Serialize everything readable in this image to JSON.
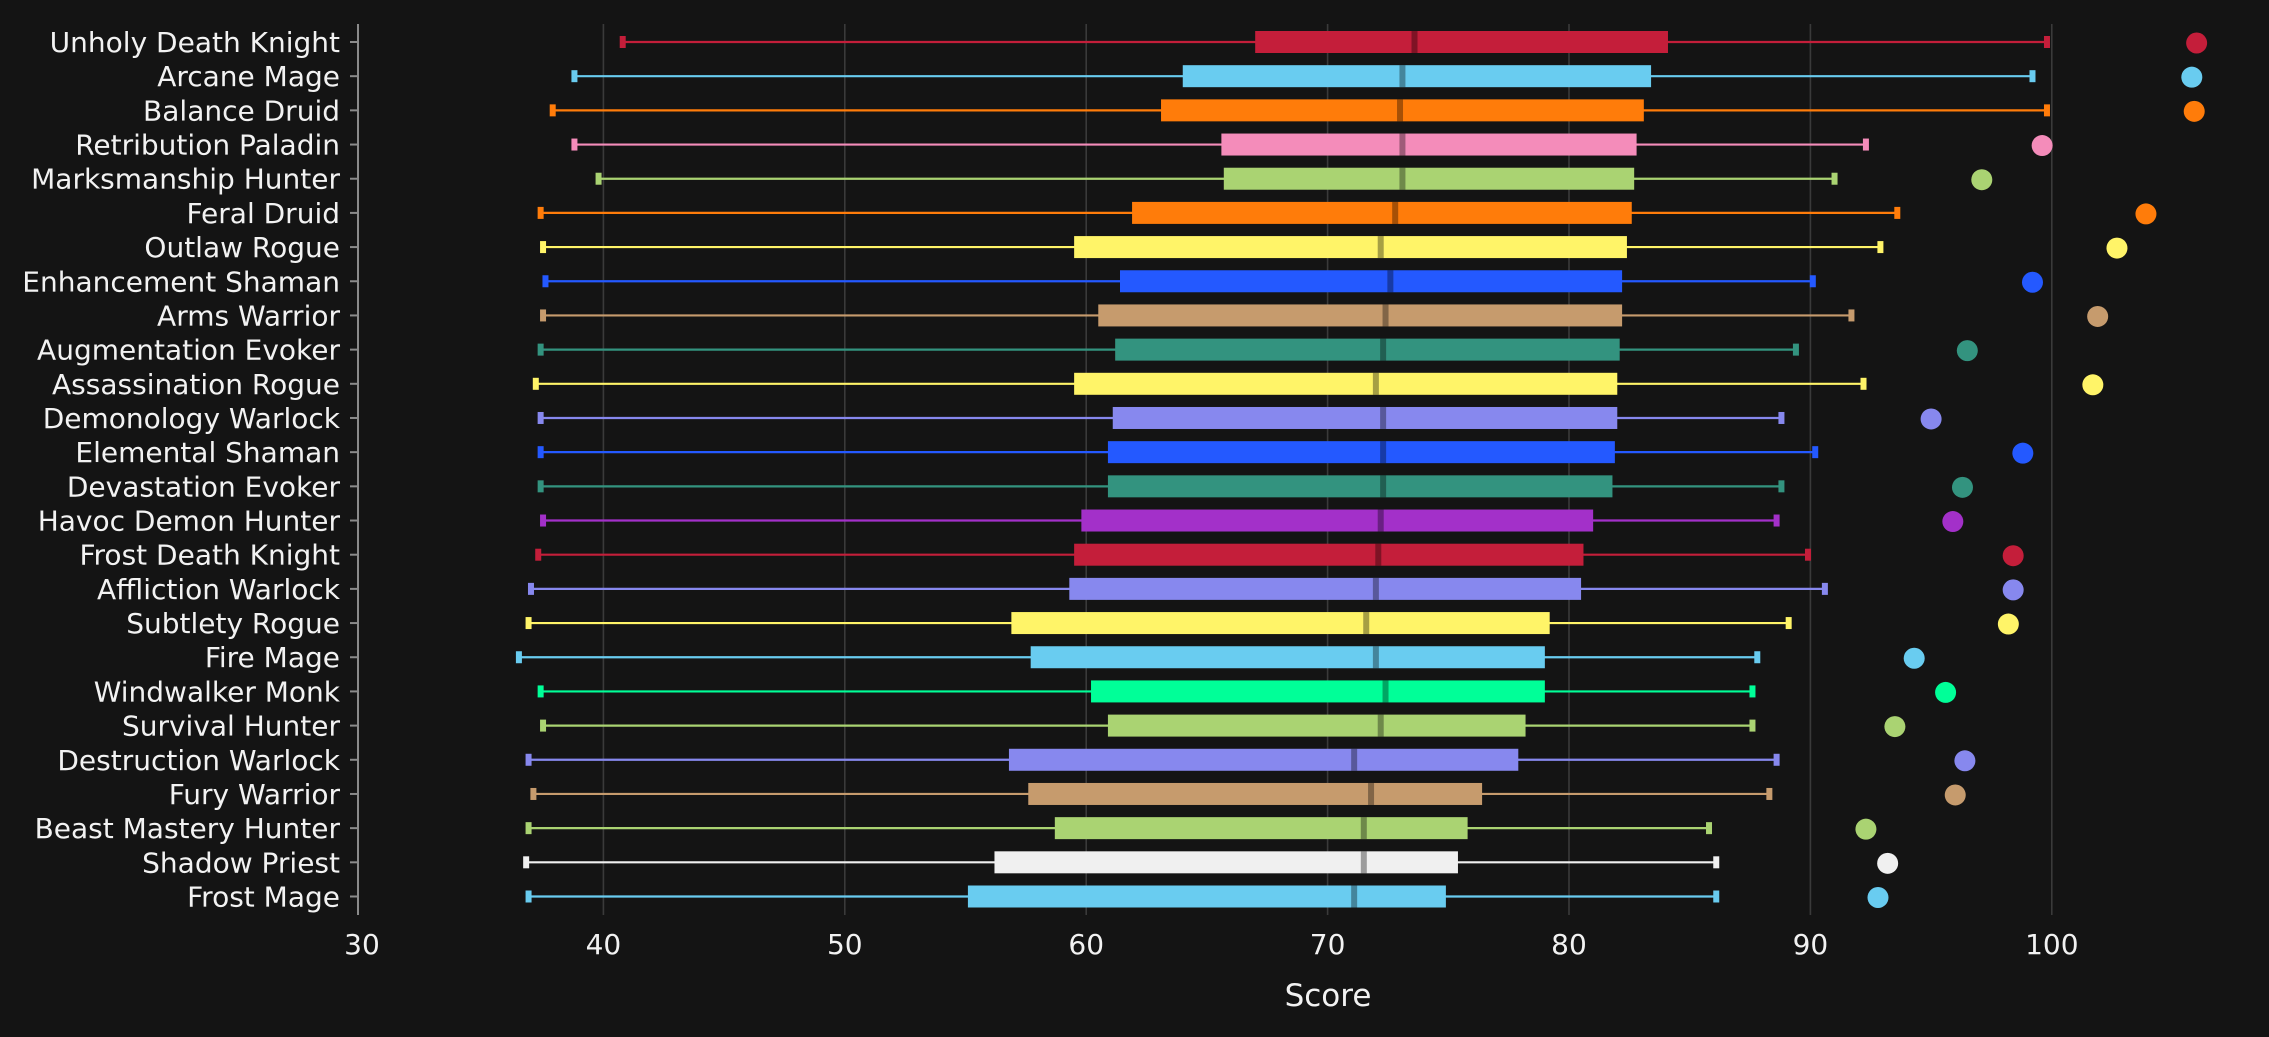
{
  "chart_data": {
    "type": "box",
    "title": "",
    "xlabel": "Score",
    "ylabel": "",
    "xlim": [
      30,
      107
    ],
    "x_ticks": [
      30,
      40,
      50,
      60,
      70,
      80,
      90,
      100
    ],
    "x_tick_labels": [
      "30",
      "40",
      "50",
      "60",
      "70",
      "80",
      "90",
      "100"
    ],
    "grid": "vertical",
    "legend": "none",
    "series": [
      {
        "name": "Unholy Death Knight",
        "color": "#C41E3A",
        "min": 40.8,
        "q1": 67.0,
        "median": 73.6,
        "q3": 84.1,
        "max": 99.8,
        "outlier": 106.0
      },
      {
        "name": "Arcane Mage",
        "color": "#69CCF0",
        "min": 38.8,
        "q1": 64.0,
        "median": 73.1,
        "q3": 83.4,
        "max": 99.2,
        "outlier": 105.8
      },
      {
        "name": "Balance Druid",
        "color": "#FF7C0A",
        "min": 37.9,
        "q1": 63.1,
        "median": 73.0,
        "q3": 83.1,
        "max": 99.8,
        "outlier": 105.9
      },
      {
        "name": "Retribution Paladin",
        "color": "#F48CBA",
        "min": 38.8,
        "q1": 65.6,
        "median": 73.1,
        "q3": 82.8,
        "max": 92.3,
        "outlier": 99.6
      },
      {
        "name": "Marksmanship Hunter",
        "color": "#AAD372",
        "min": 39.8,
        "q1": 65.7,
        "median": 73.1,
        "q3": 82.7,
        "max": 91.0,
        "outlier": 97.1
      },
      {
        "name": "Feral Druid",
        "color": "#FF7C0A",
        "min": 37.4,
        "q1": 61.9,
        "median": 72.8,
        "q3": 82.6,
        "max": 93.6,
        "outlier": 103.9
      },
      {
        "name": "Outlaw Rogue",
        "color": "#FFF468",
        "min": 37.5,
        "q1": 59.5,
        "median": 72.2,
        "q3": 82.4,
        "max": 92.9,
        "outlier": 102.7
      },
      {
        "name": "Enhancement Shaman",
        "color": "#2459FF",
        "min": 37.6,
        "q1": 61.4,
        "median": 72.6,
        "q3": 82.2,
        "max": 90.1,
        "outlier": 99.2
      },
      {
        "name": "Arms Warrior",
        "color": "#C69B6D",
        "min": 37.5,
        "q1": 60.5,
        "median": 72.4,
        "q3": 82.2,
        "max": 91.7,
        "outlier": 101.9
      },
      {
        "name": "Augmentation Evoker",
        "color": "#33937F",
        "min": 37.4,
        "q1": 61.2,
        "median": 72.3,
        "q3": 82.1,
        "max": 89.4,
        "outlier": 96.5
      },
      {
        "name": "Assassination Rogue",
        "color": "#FFF468",
        "min": 37.2,
        "q1": 59.5,
        "median": 72.0,
        "q3": 82.0,
        "max": 92.2,
        "outlier": 101.7
      },
      {
        "name": "Demonology Warlock",
        "color": "#8788EE",
        "min": 37.4,
        "q1": 61.1,
        "median": 72.3,
        "q3": 82.0,
        "max": 88.8,
        "outlier": 95.0
      },
      {
        "name": "Elemental Shaman",
        "color": "#2459FF",
        "min": 37.4,
        "q1": 60.9,
        "median": 72.3,
        "q3": 81.9,
        "max": 90.2,
        "outlier": 98.8
      },
      {
        "name": "Devastation Evoker",
        "color": "#33937F",
        "min": 37.4,
        "q1": 60.9,
        "median": 72.3,
        "q3": 81.8,
        "max": 88.8,
        "outlier": 96.3
      },
      {
        "name": "Havoc Demon Hunter",
        "color": "#A330C9",
        "min": 37.5,
        "q1": 59.8,
        "median": 72.2,
        "q3": 81.0,
        "max": 88.6,
        "outlier": 95.9
      },
      {
        "name": "Frost Death Knight",
        "color": "#C41E3A",
        "min": 37.3,
        "q1": 59.5,
        "median": 72.1,
        "q3": 80.6,
        "max": 89.9,
        "outlier": 98.4
      },
      {
        "name": "Affliction Warlock",
        "color": "#8788EE",
        "min": 37.0,
        "q1": 59.3,
        "median": 72.0,
        "q3": 80.5,
        "max": 90.6,
        "outlier": 98.4
      },
      {
        "name": "Subtlety Rogue",
        "color": "#FFF468",
        "min": 36.9,
        "q1": 56.9,
        "median": 71.6,
        "q3": 79.2,
        "max": 89.1,
        "outlier": 98.2
      },
      {
        "name": "Fire Mage",
        "color": "#69CCF0",
        "min": 36.5,
        "q1": 57.7,
        "median": 72.0,
        "q3": 79.0,
        "max": 87.8,
        "outlier": 94.3
      },
      {
        "name": "Windwalker Monk",
        "color": "#00FF98",
        "min": 37.4,
        "q1": 60.2,
        "median": 72.4,
        "q3": 79.0,
        "max": 87.6,
        "outlier": 95.6
      },
      {
        "name": "Survival Hunter",
        "color": "#AAD372",
        "min": 37.5,
        "q1": 60.9,
        "median": 72.2,
        "q3": 78.2,
        "max": 87.6,
        "outlier": 93.5
      },
      {
        "name": "Destruction Warlock",
        "color": "#8788EE",
        "min": 36.9,
        "q1": 56.8,
        "median": 71.1,
        "q3": 77.9,
        "max": 88.6,
        "outlier": 96.4
      },
      {
        "name": "Fury Warrior",
        "color": "#C69B6D",
        "min": 37.1,
        "q1": 57.6,
        "median": 71.8,
        "q3": 76.4,
        "max": 88.3,
        "outlier": 96.0
      },
      {
        "name": "Beast Mastery Hunter",
        "color": "#AAD372",
        "min": 36.9,
        "q1": 58.7,
        "median": 71.5,
        "q3": 75.8,
        "max": 85.8,
        "outlier": 92.3
      },
      {
        "name": "Shadow Priest",
        "color": "#F0F0F0",
        "min": 36.8,
        "q1": 56.2,
        "median": 71.5,
        "q3": 75.4,
        "max": 86.1,
        "outlier": 93.2
      },
      {
        "name": "Frost Mage",
        "color": "#69CCF0",
        "min": 36.9,
        "q1": 55.1,
        "median": 71.1,
        "q3": 74.9,
        "max": 86.1,
        "outlier": 92.8
      }
    ]
  }
}
